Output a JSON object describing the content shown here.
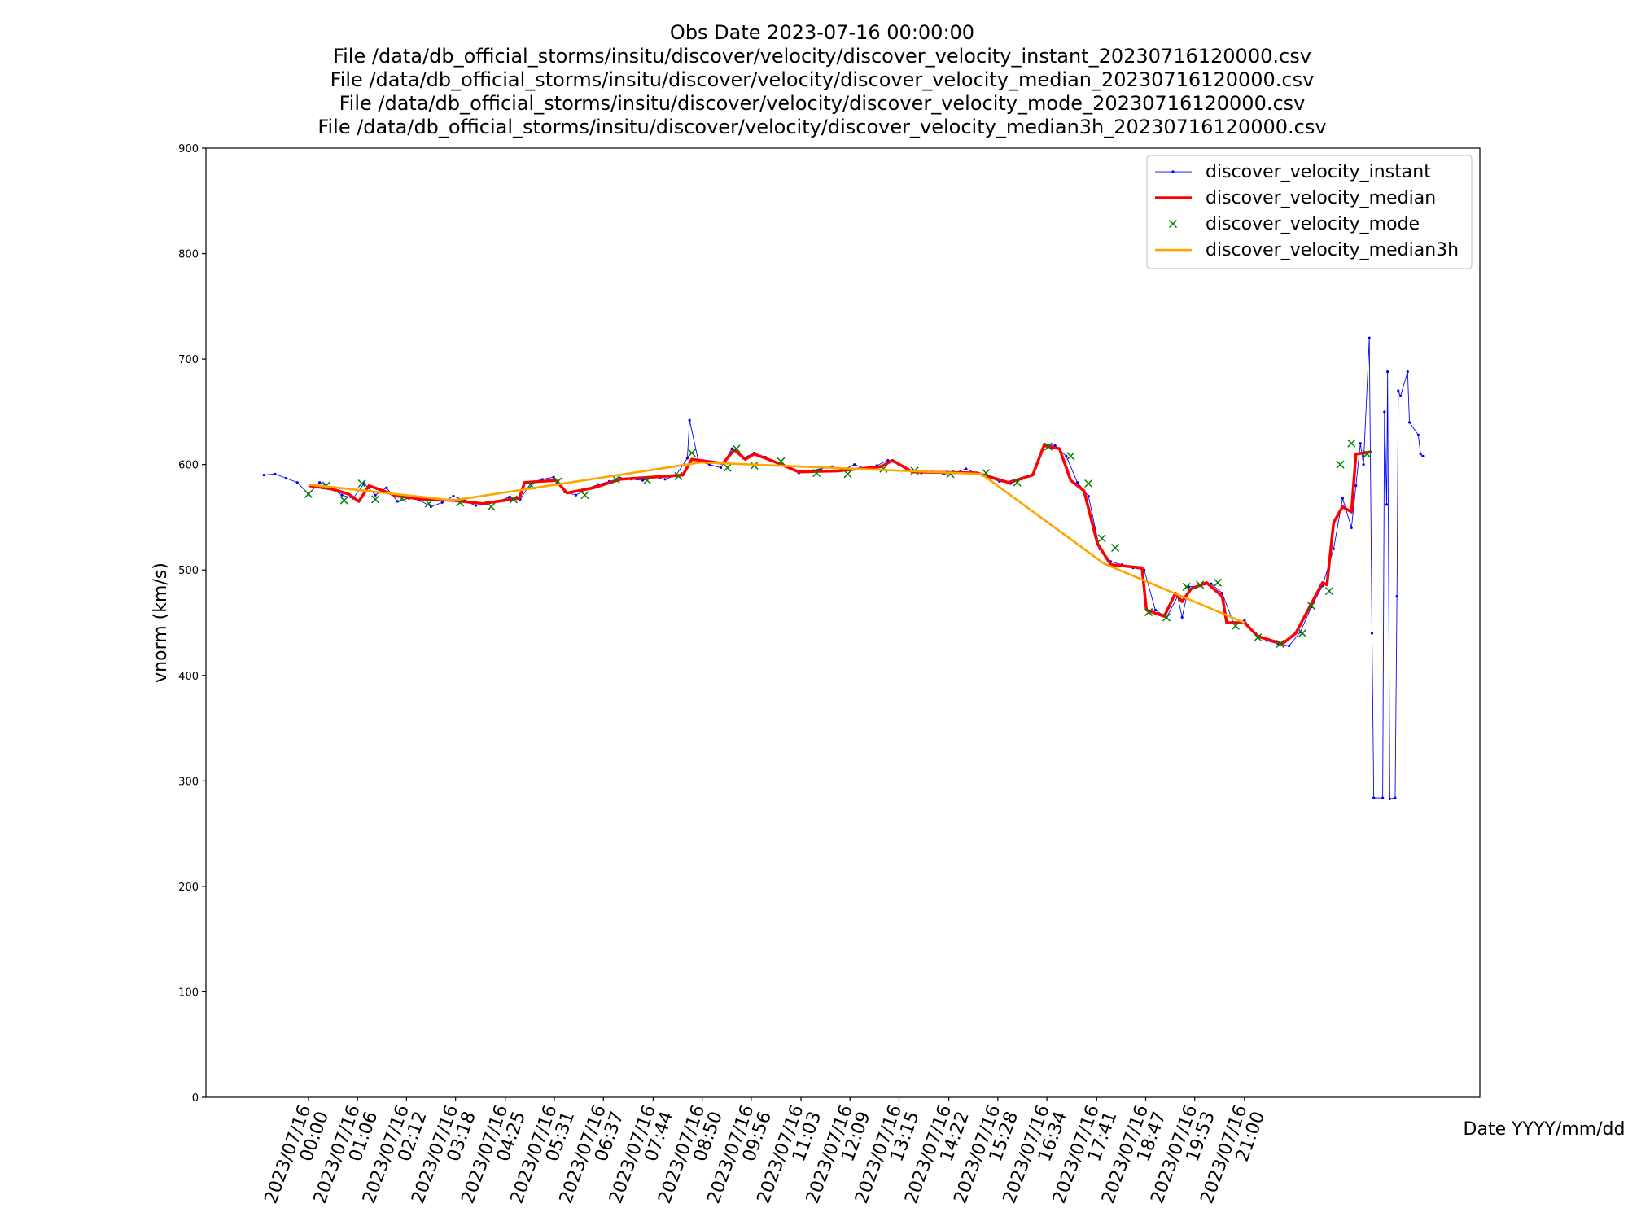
{
  "chart_data": {
    "type": "line",
    "title": [
      "Obs Date 2023-07-16 00:00:00",
      "File /data/db_official_storms/insitu/discover/velocity/discover_velocity_instant_20230716120000.csv",
      "File /data/db_official_storms/insitu/discover/velocity/discover_velocity_median_20230716120000.csv",
      "File /data/db_official_storms/insitu/discover/velocity/discover_velocity_mode_20230716120000.csv",
      "File /data/db_official_storms/insitu/discover/velocity/discover_velocity_median3h_20230716120000.csv"
    ],
    "ylabel": "vnorm (km/s)",
    "xlabel": "Date YYYY/mm/dd",
    "xlim": [
      -2.3,
      26.28
    ],
    "ylim": [
      0,
      900
    ],
    "yticks": [
      0,
      100,
      200,
      300,
      400,
      500,
      600,
      700,
      800,
      900
    ],
    "xticks": [
      {
        "value": 0,
        "label": "2023/07/16\n00:00"
      },
      {
        "value": 1.1,
        "label": "2023/07/16\n01:06"
      },
      {
        "value": 2.2,
        "label": "2023/07/16\n02:12"
      },
      {
        "value": 3.3,
        "label": "2023/07/16\n03:18"
      },
      {
        "value": 4.4167,
        "label": "2023/07/16\n04:25"
      },
      {
        "value": 5.5167,
        "label": "2023/07/16\n05:31"
      },
      {
        "value": 6.6167,
        "label": "2023/07/16\n06:37"
      },
      {
        "value": 7.7333,
        "label": "2023/07/16\n07:44"
      },
      {
        "value": 8.8333,
        "label": "2023/07/16\n08:50"
      },
      {
        "value": 9.9333,
        "label": "2023/07/16\n09:56"
      },
      {
        "value": 11.05,
        "label": "2023/07/16\n11:03"
      },
      {
        "value": 12.15,
        "label": "2023/07/16\n12:09"
      },
      {
        "value": 13.25,
        "label": "2023/07/16\n13:15"
      },
      {
        "value": 14.3667,
        "label": "2023/07/16\n14:22"
      },
      {
        "value": 15.4667,
        "label": "2023/07/16\n15:28"
      },
      {
        "value": 16.5667,
        "label": "2023/07/16\n16:34"
      },
      {
        "value": 17.6833,
        "label": "2023/07/16\n17:41"
      },
      {
        "value": 18.7833,
        "label": "2023/07/16\n18:47"
      },
      {
        "value": 19.8833,
        "label": "2023/07/16\n19:53"
      },
      {
        "value": 21,
        "label": "2023/07/16\n21:00"
      }
    ],
    "legend": "upper right",
    "series": [
      {
        "name": "discover_velocity_instant",
        "color": "#0000ff",
        "linewidth": 0.5,
        "marker": ".",
        "x": [
          -1,
          -0.75,
          -0.5,
          -0.25,
          0,
          0.25,
          0.5,
          0.75,
          1,
          1.25,
          1.5,
          1.75,
          2,
          2.25,
          2.5,
          2.75,
          3,
          3.25,
          3.5,
          3.75,
          4,
          4.25,
          4.5,
          4.75,
          5,
          5.25,
          5.5,
          5.75,
          6,
          6.25,
          6.5,
          6.75,
          7,
          7.25,
          7.5,
          7.75,
          8,
          8.25,
          8.5,
          8.55,
          8.75,
          9,
          9.25,
          9.5,
          9.75,
          10,
          10.25,
          10.5,
          10.75,
          11,
          11.25,
          11.5,
          11.75,
          12,
          12.25,
          12.5,
          12.75,
          13,
          13.25,
          13.5,
          13.75,
          14,
          14.25,
          14.5,
          14.75,
          15,
          15.25,
          15.5,
          15.75,
          16,
          16.25,
          16.5,
          16.75,
          17,
          17.25,
          17.5,
          17.75,
          18,
          18.25,
          18.5,
          18.75,
          19,
          19.25,
          19.5,
          19.6,
          19.75,
          20,
          20.25,
          20.5,
          20.75,
          21,
          21.25,
          21.5,
          21.75,
          22,
          22.25,
          22.5,
          22.75,
          23,
          23.2,
          23.4,
          23.5,
          23.6,
          23.67,
          23.8,
          23.86,
          23.9,
          24.1,
          24.14,
          24.19,
          24.21,
          24.26,
          24.38,
          24.42,
          24.45,
          24.5,
          24.66,
          24.7,
          24.9,
          24.95,
          25
        ],
        "values": [
          590,
          591,
          587,
          583,
          572,
          583,
          578,
          571,
          568,
          582,
          571,
          578,
          565,
          568,
          566,
          560,
          564,
          570,
          566,
          561,
          563,
          565,
          569,
          567,
          583,
          586,
          588,
          574,
          571,
          577,
          581,
          584,
          587,
          586,
          585,
          588,
          586,
          590,
          606,
          642,
          603,
          600,
          597,
          615,
          606,
          611,
          607,
          602,
          598,
          592,
          594,
          596,
          598,
          595,
          600,
          596,
          599,
          604,
          600,
          594,
          592,
          593,
          591,
          592,
          596,
          591,
          588,
          584,
          582,
          586,
          591,
          619,
          618,
          608,
          583,
          570,
          520,
          508,
          505,
          502,
          500,
          462,
          455,
          475,
          455,
          484,
          485,
          487,
          478,
          450,
          452,
          440,
          433,
          430,
          428,
          441,
          465,
          485,
          520,
          568,
          540,
          580,
          620,
          600,
          720,
          440,
          284,
          284,
          650,
          562,
          688,
          283,
          284,
          475,
          670,
          665,
          688,
          640,
          628,
          610,
          608
        ]
      },
      {
        "name": "discover_velocity_median",
        "color": "#ff0000",
        "linewidth": 2,
        "x": [
          0,
          0.5,
          0.9,
          1.13,
          1.36,
          2,
          2.6,
          3.25,
          3.9,
          4.73,
          4.85,
          5.55,
          5.8,
          6.4,
          7,
          8.4,
          8.6,
          9.3,
          9.55,
          9.8,
          10,
          10.5,
          11,
          11.9,
          12.85,
          13.1,
          13.55,
          15,
          15.7,
          16.25,
          16.5,
          16.85,
          17.1,
          17.4,
          17.7,
          18,
          18.7,
          18.8,
          19.2,
          19.45,
          19.6,
          19.8,
          20.15,
          20.5,
          20.6,
          21,
          21.3,
          21.85,
          22.15,
          22.5,
          22.75,
          22.85,
          23,
          23.2,
          23.4,
          23.5,
          23.85
        ],
        "values": [
          580,
          577,
          572,
          565,
          580,
          570,
          567,
          566,
          563,
          568,
          583,
          585,
          573,
          578,
          586,
          590,
          605,
          601,
          614,
          605,
          610,
          602,
          593,
          594,
          598,
          604,
          593,
          592,
          583,
          590,
          618,
          615,
          585,
          575,
          525,
          505,
          502,
          462,
          456,
          478,
          470,
          482,
          488,
          475,
          450,
          450,
          437,
          430,
          440,
          468,
          488,
          486,
          545,
          560,
          555,
          610,
          612
        ]
      },
      {
        "name": "discover_velocity_mode",
        "color": "#008000",
        "linewidth": 0,
        "marker": "x",
        "x": [
          0,
          0.4,
          0.8,
          1.2,
          1.5,
          2.1,
          2.7,
          3.4,
          4.1,
          4.6,
          5,
          5.6,
          6.2,
          6.9,
          7.6,
          8.3,
          8.6,
          9.4,
          9.6,
          10,
          10.6,
          11.4,
          12.1,
          12.9,
          13.6,
          14.4,
          15.2,
          15.9,
          16.6,
          17.1,
          17.5,
          17.8,
          18.1,
          18.85,
          19.25,
          19.7,
          20,
          20.4,
          20.8,
          21.3,
          21.8,
          22.3,
          22.5,
          22.9,
          23.15,
          23.4,
          23.75
        ],
        "values": [
          572,
          580,
          566,
          582,
          567,
          568,
          563,
          564,
          560,
          567,
          580,
          584,
          571,
          586,
          585,
          589,
          611,
          597,
          615,
          599,
          603,
          592,
          591,
          596,
          594,
          591,
          592,
          583,
          617,
          608,
          582,
          530,
          521,
          460,
          455,
          484,
          486,
          488,
          447,
          436,
          430,
          440,
          466,
          480,
          600,
          620,
          610
        ]
      },
      {
        "name": "discover_velocity_median3h",
        "color": "#ffa500",
        "linewidth": 1.5,
        "x": [
          0,
          3.25,
          8.8,
          15.1,
          17.85,
          21
        ],
        "values": [
          581,
          566,
          602,
          591,
          506,
          450
        ]
      }
    ]
  }
}
